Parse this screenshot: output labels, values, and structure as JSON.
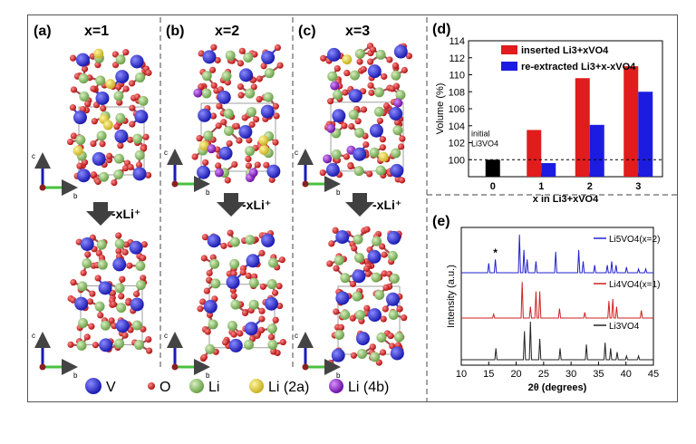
{
  "panels": {
    "a": {
      "label": "(a)",
      "title": "x=1"
    },
    "b": {
      "label": "(b)",
      "title": "x=2"
    },
    "c": {
      "label": "(c)",
      "title": "x=3"
    },
    "d": {
      "label": "(d)"
    },
    "e": {
      "label": "(e)"
    }
  },
  "arrow_label": "-xLi⁺",
  "axes_labels": {
    "c": "c",
    "b": "b"
  },
  "atom_legend": [
    {
      "symbol": "V",
      "color": "#2a2ad0"
    },
    {
      "symbol": "O",
      "color": "#cc1a1a"
    },
    {
      "symbol": "Li",
      "color": "#8cc46a"
    },
    {
      "symbol": "Li (2a)",
      "color": "#e8d84a"
    },
    {
      "symbol": "Li (4b)",
      "color": "#9a28c8"
    }
  ],
  "chart_data": [
    {
      "type": "bar",
      "panel": "d",
      "ylabel": "Volume (%)",
      "xlabel": "x in Li3+xVO4",
      "ylim": [
        98,
        114
      ],
      "yticks": [
        "100",
        "102",
        "104",
        "106",
        "108",
        "110",
        "112",
        "114"
      ],
      "categories": [
        "0",
        "1",
        "2",
        "3"
      ],
      "series": [
        {
          "name": "inserted Li3+xVO4",
          "color": "#e01c1c",
          "values": [
            100,
            103.5,
            109.6,
            111.0
          ]
        },
        {
          "name": "re-extracted Li3+x-xVO4",
          "color": "#1c1ce0",
          "values": [
            100,
            99.6,
            104.1,
            108.0
          ]
        }
      ],
      "reference": {
        "value": 100,
        "color": "#000000",
        "label_line1": "initial",
        "label_line2": "Li3VO4"
      }
    },
    {
      "type": "line",
      "panel": "e",
      "ylabel": "Intensity (a.u.)",
      "xlabel": "2θ (degrees)",
      "xlim": [
        10,
        45
      ],
      "xticks": [
        "10",
        "15",
        "20",
        "25",
        "30",
        "35",
        "40",
        "45"
      ],
      "series": [
        {
          "name": "Li5VO4(x=2)",
          "color": "#2222cc",
          "peaks": [
            [
              15.0,
              0.25
            ],
            [
              16.2,
              0.35
            ],
            [
              20.6,
              1.0
            ],
            [
              21.4,
              0.6
            ],
            [
              22.0,
              0.35
            ],
            [
              23.6,
              0.3
            ],
            [
              27.2,
              0.55
            ],
            [
              31.4,
              0.6
            ],
            [
              32.2,
              0.3
            ],
            [
              34.3,
              0.2
            ],
            [
              36.6,
              0.2
            ],
            [
              37.4,
              0.3
            ],
            [
              38.2,
              0.2
            ],
            [
              40.1,
              0.15
            ],
            [
              42.3,
              0.1
            ],
            [
              43.6,
              0.1
            ]
          ]
        },
        {
          "name": "Li4VO4(x=1)",
          "color": "#cc2222",
          "peaks": [
            [
              15.9,
              0.1
            ],
            [
              21.1,
              0.95
            ],
            [
              22.6,
              0.3
            ],
            [
              23.6,
              0.7
            ],
            [
              24.3,
              0.7
            ],
            [
              27.9,
              0.25
            ],
            [
              32.5,
              0.15
            ],
            [
              36.9,
              0.45
            ],
            [
              37.6,
              0.5
            ],
            [
              38.3,
              0.3
            ],
            [
              42.8,
              0.2
            ]
          ]
        },
        {
          "name": "Li3VO4",
          "color": "#222222",
          "peaks": [
            [
              16.3,
              0.3
            ],
            [
              21.5,
              0.75
            ],
            [
              22.6,
              1.0
            ],
            [
              24.3,
              0.55
            ],
            [
              28.0,
              0.3
            ],
            [
              32.8,
              0.4
            ],
            [
              36.2,
              0.45
            ],
            [
              37.2,
              0.3
            ],
            [
              38.4,
              0.2
            ],
            [
              40.1,
              0.1
            ],
            [
              42.3,
              0.1
            ]
          ]
        }
      ],
      "annotation": "*"
    }
  ]
}
